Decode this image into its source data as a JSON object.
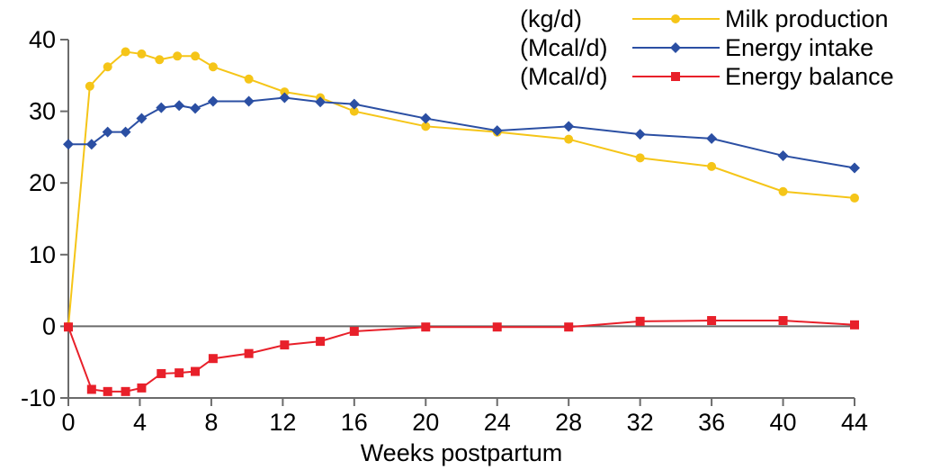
{
  "chart_data": {
    "type": "line",
    "xlabel": "Weeks postpartum",
    "ylabel": "",
    "xlim": [
      0,
      44
    ],
    "ylim": [
      -10,
      40
    ],
    "xticks": [
      0,
      4,
      8,
      12,
      16,
      20,
      24,
      28,
      32,
      36,
      40,
      44
    ],
    "yticks": [
      -10,
      0,
      10,
      20,
      30,
      40
    ],
    "grid": false,
    "legend_position": "top-right",
    "series": [
      {
        "name": "Milk production",
        "unit": "(kg/d)",
        "color": "#f5c518",
        "marker": "circle",
        "x": [
          0,
          1.2,
          2.2,
          3.2,
          4.1,
          5.1,
          6.1,
          7.1,
          8.1,
          10.1,
          12.1,
          14.1,
          16,
          20,
          24,
          28,
          32,
          36,
          40,
          44
        ],
        "y": [
          0,
          33.5,
          36.2,
          38.3,
          38.0,
          37.2,
          37.7,
          37.7,
          36.2,
          34.5,
          32.7,
          31.9,
          30.0,
          27.9,
          27.1,
          26.1,
          23.5,
          22.3,
          18.8,
          17.9
        ]
      },
      {
        "name": "Energy intake",
        "unit": "(Mcal/d)",
        "color": "#2b4fa3",
        "marker": "diamond",
        "x": [
          0,
          1.3,
          2.2,
          3.2,
          4.1,
          5.2,
          6.2,
          7.1,
          8.1,
          10.1,
          12.1,
          14.1,
          16,
          20,
          24,
          28,
          32,
          36,
          40,
          44
        ],
        "y": [
          25.4,
          25.4,
          27.1,
          27.1,
          29.0,
          30.5,
          30.8,
          30.4,
          31.4,
          31.4,
          31.9,
          31.3,
          31.0,
          29.0,
          27.3,
          27.9,
          26.8,
          26.2,
          23.8,
          22.1
        ]
      },
      {
        "name": "Energy balance",
        "unit": "(Mcal/d)",
        "color": "#e8202a",
        "marker": "square",
        "x": [
          0,
          1.3,
          2.2,
          3.2,
          4.1,
          5.2,
          6.2,
          7.1,
          8.1,
          10.1,
          12.1,
          14.1,
          16,
          20,
          24,
          28,
          32,
          36,
          40,
          44
        ],
        "y": [
          -0.1,
          -8.8,
          -9.1,
          -9.1,
          -8.6,
          -6.6,
          -6.5,
          -6.3,
          -4.5,
          -3.8,
          -2.6,
          -2.1,
          -0.7,
          -0.1,
          -0.1,
          -0.1,
          0.7,
          0.8,
          0.8,
          0.2
        ]
      }
    ]
  }
}
